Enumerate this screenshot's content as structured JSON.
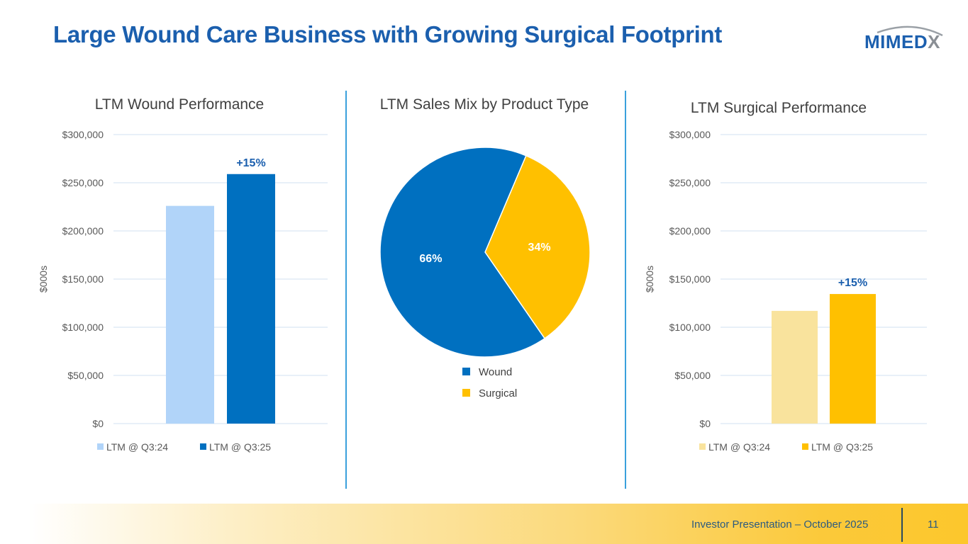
{
  "slide": {
    "title": "Large Wound Care Business with Growing Surgical Footprint",
    "logo": {
      "main": "MIMED",
      "accent": "X"
    },
    "footer": {
      "text": "Investor Presentation – October 2025",
      "page": "11"
    }
  },
  "colors": {
    "title": "#1b5fae",
    "wound_prior": "#b1d4f9",
    "wound_current": "#0070c0",
    "surgical_prior": "#f9e39d",
    "surgical_current": "#ffc000",
    "annotation": "#1b5fae",
    "divider": "#3aa0dc"
  },
  "chart_data": [
    {
      "type": "bar",
      "title": "LTM Wound Performance",
      "ylabel": "$000s",
      "xlabel": "",
      "ylim": [
        0,
        300000
      ],
      "yticks": [
        0,
        50000,
        100000,
        150000,
        200000,
        250000,
        300000
      ],
      "ytick_labels": [
        "$0",
        "$50,000",
        "$100,000",
        "$150,000",
        "$200,000",
        "$250,000",
        "$300,000"
      ],
      "grid": true,
      "legend": "bottom",
      "series": [
        {
          "name": "LTM @ Q3:24",
          "values": [
            226000
          ]
        },
        {
          "name": "LTM @ Q3:25",
          "values": [
            259000
          ]
        }
      ],
      "annotation": "+15%"
    },
    {
      "type": "pie",
      "title": "LTM Sales Mix by Product Type",
      "legend": "bottom",
      "slices": [
        {
          "name": "Wound",
          "value": 66,
          "label": "66%"
        },
        {
          "name": "Surgical",
          "value": 34,
          "label": "34%"
        }
      ]
    },
    {
      "type": "bar",
      "title": "LTM Surgical Performance",
      "ylabel": "$000s",
      "xlabel": "",
      "ylim": [
        0,
        300000
      ],
      "yticks": [
        0,
        50000,
        100000,
        150000,
        200000,
        250000,
        300000
      ],
      "ytick_labels": [
        "$0",
        "$50,000",
        "$100,000",
        "$150,000",
        "$200,000",
        "$250,000",
        "$300,000"
      ],
      "grid": true,
      "legend": "bottom",
      "series": [
        {
          "name": "LTM @ Q3:24",
          "values": [
            117000
          ]
        },
        {
          "name": "LTM @ Q3:25",
          "values": [
            134500
          ]
        }
      ],
      "annotation": "+15%"
    }
  ]
}
